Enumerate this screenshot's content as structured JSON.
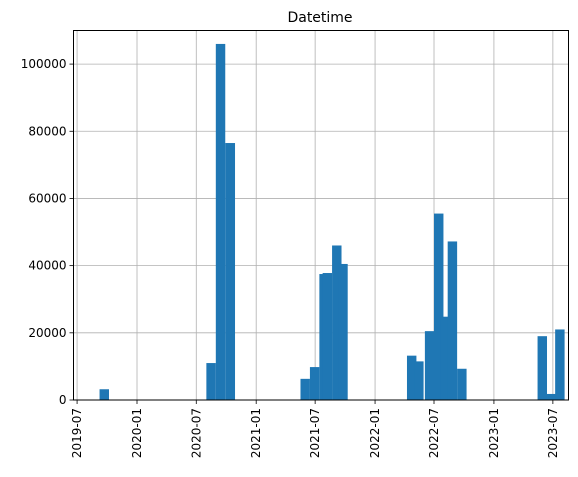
{
  "chart_data": {
    "type": "bar",
    "title": "Datetime",
    "xlabel": "",
    "ylabel": "",
    "grid": true,
    "color": "#1f77b4",
    "x_axis": "date",
    "x_range": [
      "2019-06-20",
      "2023-08-18"
    ],
    "y_range": [
      0,
      110000
    ],
    "y_ticks": [
      0,
      20000,
      40000,
      60000,
      80000,
      100000
    ],
    "y_tick_labels": [
      "0",
      "20000",
      "40000",
      "60000",
      "80000",
      "100000"
    ],
    "x_ticks": [
      "2019-07-01",
      "2020-01-01",
      "2020-07-01",
      "2021-01-01",
      "2021-07-01",
      "2022-01-01",
      "2022-07-01",
      "2023-01-01",
      "2023-07-01"
    ],
    "x_tick_labels": [
      "2019-07",
      "2020-01",
      "2020-07",
      "2021-01",
      "2021-07",
      "2022-01",
      "2022-07",
      "2023-01",
      "2023-07"
    ],
    "bins": [
      {
        "start": "2019-09-08",
        "end": "2019-10-07",
        "count": 3200
      },
      {
        "start": "2020-08-01",
        "end": "2020-08-30",
        "count": 11000
      },
      {
        "start": "2020-08-30",
        "end": "2020-09-28",
        "count": 106000
      },
      {
        "start": "2020-09-28",
        "end": "2020-10-28",
        "count": 76500
      },
      {
        "start": "2021-05-17",
        "end": "2021-06-15",
        "count": 6300
      },
      {
        "start": "2021-06-15",
        "end": "2021-07-14",
        "count": 9800
      },
      {
        "start": "2021-07-14",
        "end": "2021-08-12",
        "count": 37500
      },
      {
        "start": "2021-07-24",
        "end": "2021-08-22",
        "count": 37800
      },
      {
        "start": "2021-08-22",
        "end": "2021-09-20",
        "count": 46000
      },
      {
        "start": "2021-09-10",
        "end": "2021-10-09",
        "count": 40500
      },
      {
        "start": "2022-04-09",
        "end": "2022-05-08",
        "count": 13200
      },
      {
        "start": "2022-05-01",
        "end": "2022-05-30",
        "count": 11500
      },
      {
        "start": "2022-06-03",
        "end": "2022-07-01",
        "count": 20500
      },
      {
        "start": "2022-07-01",
        "end": "2022-07-30",
        "count": 55500
      },
      {
        "start": "2022-07-20",
        "end": "2022-08-18",
        "count": 24800
      },
      {
        "start": "2022-08-12",
        "end": "2022-09-10",
        "count": 47200
      },
      {
        "start": "2022-09-10",
        "end": "2022-10-09",
        "count": 9300
      },
      {
        "start": "2023-05-15",
        "end": "2023-06-13",
        "count": 19000
      },
      {
        "start": "2023-06-13",
        "end": "2023-07-12",
        "count": 1800
      },
      {
        "start": "2023-07-08",
        "end": "2023-08-06",
        "count": 21000
      }
    ]
  }
}
